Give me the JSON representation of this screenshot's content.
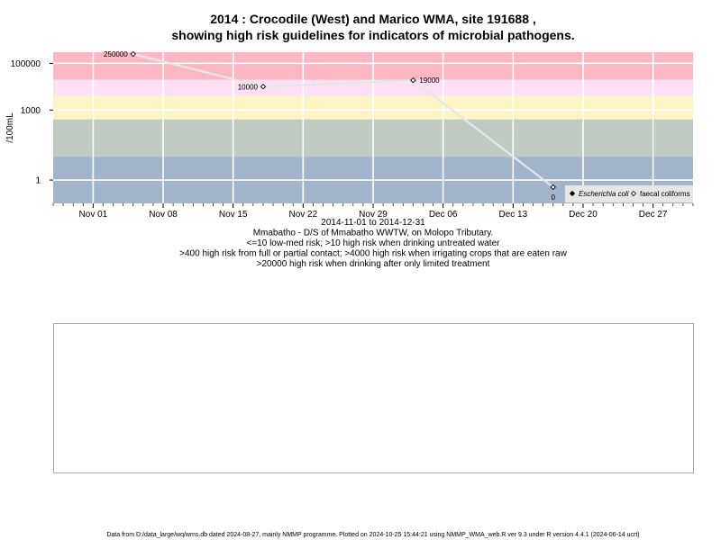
{
  "chart_data": {
    "type": "scatter",
    "title_line1": "2014 : Crocodile (West) and Marico WMA, site 191688 ,",
    "title_line2": "showing high risk guidelines for indicators of microbial pathogens.",
    "ylabel": "/100mL",
    "y_scale": "log",
    "yticks": [
      {
        "value": 1,
        "label": "1"
      },
      {
        "value": 1000,
        "label": "1000"
      },
      {
        "value": 100000,
        "label": "100000"
      }
    ],
    "xlim": [
      "2014-10-28",
      "2014-12-31"
    ],
    "xticks": [
      {
        "date": "2014-11-01",
        "label": "Nov 01"
      },
      {
        "date": "2014-11-08",
        "label": "Nov 08"
      },
      {
        "date": "2014-11-15",
        "label": "Nov 15"
      },
      {
        "date": "2014-11-22",
        "label": "Nov 22"
      },
      {
        "date": "2014-11-29",
        "label": "Nov 29"
      },
      {
        "date": "2014-12-06",
        "label": "Dec 06"
      },
      {
        "date": "2014-12-13",
        "label": "Dec 13"
      },
      {
        "date": "2014-12-20",
        "label": "Dec 20"
      },
      {
        "date": "2014-12-27",
        "label": "Dec 27"
      }
    ],
    "risk_bands": [
      {
        "from": 0.1,
        "to": 10,
        "color": "#a2b3cc"
      },
      {
        "from": 10,
        "to": 400,
        "color": "#bfcbc1"
      },
      {
        "from": 400,
        "to": 4000,
        "color": "#fdf4c3"
      },
      {
        "from": 4000,
        "to": 20000,
        "color": "#fde0f4"
      },
      {
        "from": 20000,
        "to": 300000,
        "color": "#fdb7c3"
      }
    ],
    "series": [
      {
        "name": "faecal coliforms",
        "marker": "open-diamond",
        "points": [
          {
            "date": "2014-11-05",
            "value": 250000,
            "label": "250000",
            "label_side": "left"
          },
          {
            "date": "2014-11-18",
            "value": 10000,
            "label": "10000",
            "label_side": "left"
          },
          {
            "date": "2014-12-03",
            "value": 19000,
            "label": "19000",
            "label_side": "right"
          },
          {
            "date": "2014-12-17",
            "value": 0.5,
            "label": "0",
            "label_side": "below"
          }
        ]
      }
    ],
    "legend": {
      "position": "bottom-right",
      "items": [
        {
          "label": "Escherichia coli",
          "marker": "filled-diamond",
          "italic": true
        },
        {
          "label": "faecal coliforms",
          "marker": "open-diamond",
          "italic": false
        }
      ]
    },
    "grid": true,
    "subtitle_lines": [
      "2014-11-01 to 2014-12-31",
      "Mmabatho - D/S of Mmabatho WWTW, on Molopo Tributary.",
      "<=10 low-med risk; >10 high risk when drinking untreated water",
      ">400 high risk from full or partial contact; >4000 high risk when irrigating crops that are eaten raw",
      ">20000 high risk when drinking after only limited treatment"
    ],
    "footer": "Data from D:/data_large/wq/wms.db dated 2024-08-27, mainly NMMP programme. Plotted on 2024-10-25 15:44:21 using NMMP_WMA_web.R ver 9.3 under R version 4.4.1 (2024-06-14 ucrt)"
  },
  "colors": {
    "grid": "#ffffff",
    "line": "#e6e6e6",
    "legend_bg": "#e6e6e6",
    "panel_border": "#aaaaaa"
  }
}
